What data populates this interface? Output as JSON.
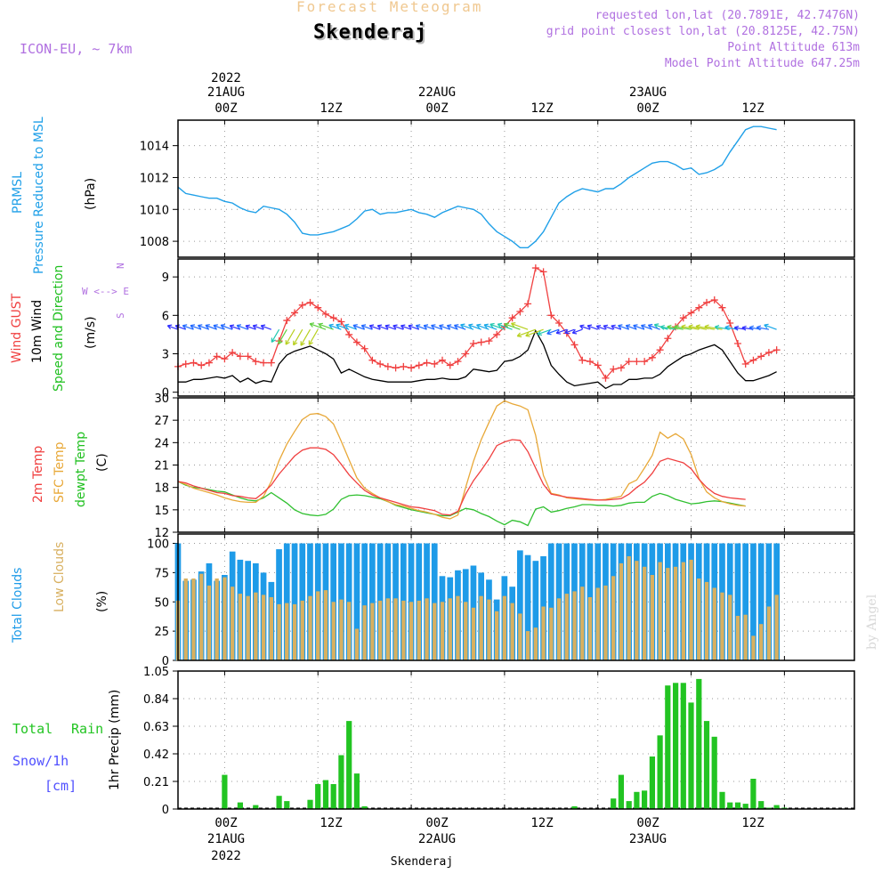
{
  "header": {
    "forecast_title": "Forecast Meteogram",
    "location": "Skenderaj",
    "model": "ICON-EU, ~ 7km",
    "requested": "requested lon,lat (20.7891E, 42.7476N)",
    "grid_point": "grid point closest lon,lat (20.8125E, 42.75N)",
    "point_altitude": "Point Altitude 613m",
    "model_altitude": "Model Point Altitude 647.25m",
    "watermark": "by Angel",
    "footer": "Skenderaj"
  },
  "time_axis": {
    "top_year": "2022",
    "top_days": [
      "21AUG",
      "22AUG",
      "23AUG"
    ],
    "hours": [
      "00Z",
      "12Z",
      "00Z",
      "12Z",
      "00Z",
      "12Z"
    ],
    "bottom_days": [
      "21AUG",
      "22AUG",
      "23AUG"
    ],
    "bottom_year": "2022"
  },
  "panel_labels": {
    "pressure": [
      "PRMSL",
      "Pressure Reduced to MSL",
      "(hPa)"
    ],
    "wind": [
      "Wind GUST",
      "10m Wind",
      "Speed and Direction",
      "(m/s)"
    ],
    "compass": [
      "N",
      "W <--> E",
      "S"
    ],
    "temp": [
      "2m Temp",
      "SFC Temp",
      "dewpt Temp",
      "(C)"
    ],
    "clouds": [
      "Total Clouds",
      "Low Clouds",
      "(%)"
    ],
    "precip": [
      "Total",
      "Rain",
      "Snow/1h",
      "[cm]",
      "1hr Precip (mm)"
    ]
  },
  "colors": {
    "pressure": "#20a0e8",
    "gust": "#f04040",
    "wind": "#000000",
    "temp2m": "#f04040",
    "sfc": "#e8a838",
    "dewpt": "#30c030",
    "total_clouds": "#1e9be8",
    "low_clouds": "#d8b060",
    "rain": "#22c422",
    "snow": "#5050ff"
  },
  "chart_data": [
    {
      "type": "line",
      "x_hours": [
        -6,
        -5,
        -4,
        -3,
        -2,
        -1,
        0,
        1,
        2,
        3,
        4,
        5,
        6,
        7,
        8,
        9,
        10,
        11,
        12,
        13,
        14,
        15,
        16,
        17,
        18,
        19,
        20,
        21,
        22,
        23,
        24,
        25,
        26,
        27,
        28,
        29,
        30,
        31,
        32,
        33,
        34,
        35,
        36,
        37,
        38,
        39,
        40,
        41,
        42,
        43,
        44,
        45,
        46,
        47,
        48,
        49,
        50,
        51,
        52,
        53,
        54,
        55,
        56,
        57,
        58,
        59,
        60,
        61,
        62,
        63,
        64,
        65,
        66,
        67,
        68,
        69,
        70,
        71,
        72,
        73,
        74,
        75,
        76,
        77,
        78,
        79,
        80,
        81
      ],
      "series": [
        {
          "name": "PRMSL",
          "values": [
            1011.4,
            1011.0,
            1010.9,
            1010.8,
            1010.7,
            1010.7,
            1010.5,
            1010.4,
            1010.1,
            1009.9,
            1009.8,
            1010.2,
            1010.1,
            1010.0,
            1009.7,
            1009.2,
            1008.5,
            1008.4,
            1008.4,
            1008.5,
            1008.6,
            1008.8,
            1009.0,
            1009.4,
            1009.9,
            1010.0,
            1009.7,
            1009.8,
            1009.8,
            1009.9,
            1010.0,
            1009.8,
            1009.7,
            1009.5,
            1009.8,
            1010.0,
            1010.2,
            1010.1,
            1010.0,
            1009.7,
            1009.1,
            1008.6,
            1008.3,
            1008.0,
            1007.6,
            1007.6,
            1008.0,
            1008.6,
            1009.5,
            1010.4,
            1010.8,
            1011.1,
            1011.3,
            1011.2,
            1011.1,
            1011.3,
            1011.3,
            1011.6,
            1012.0,
            1012.3,
            1012.6,
            1012.9,
            1013.0,
            1013.0,
            1012.8,
            1012.5,
            1012.6,
            1012.2,
            1012.3,
            1012.5,
            1012.8,
            1013.6,
            1014.3,
            1015.0,
            1015.2,
            1015.2,
            1015.1,
            1015.0
          ]
        }
      ],
      "ylim": [
        1007,
        1015.6
      ],
      "yticks": [
        1008,
        1010,
        1012,
        1014
      ],
      "grid": true
    },
    {
      "type": "line",
      "x_hours": [
        -6,
        -5,
        -4,
        -3,
        -2,
        -1,
        0,
        1,
        2,
        3,
        4,
        5,
        6,
        7,
        8,
        9,
        10,
        11,
        12,
        13,
        14,
        15,
        16,
        17,
        18,
        19,
        20,
        21,
        22,
        23,
        24,
        25,
        26,
        27,
        28,
        29,
        30,
        31,
        32,
        33,
        34,
        35,
        36,
        37,
        38,
        39,
        40,
        41,
        42,
        43,
        44,
        45,
        46,
        47,
        48,
        49,
        50,
        51,
        52,
        53,
        54,
        55,
        56,
        57,
        58,
        59,
        60,
        61,
        62,
        63,
        64,
        65,
        66,
        67,
        68,
        69,
        70,
        71,
        72,
        73,
        74,
        75,
        76,
        77,
        78,
        79,
        80,
        81
      ],
      "series": [
        {
          "name": "Wind GUST",
          "values": [
            2.0,
            2.2,
            2.3,
            2.1,
            2.3,
            2.8,
            2.6,
            3.1,
            2.8,
            2.8,
            2.4,
            2.3,
            2.3,
            4.0,
            5.6,
            6.2,
            6.8,
            7.0,
            6.6,
            6.1,
            5.8,
            5.5,
            4.5,
            3.9,
            3.4,
            2.5,
            2.2,
            2.0,
            1.9,
            2.0,
            1.9,
            2.1,
            2.3,
            2.2,
            2.5,
            2.1,
            2.4,
            3.0,
            3.8,
            3.9,
            4.0,
            4.5,
            5.1,
            5.8,
            6.3,
            6.9,
            9.7,
            9.4,
            6.0,
            5.4,
            4.6,
            3.7,
            2.5,
            2.4,
            2.1,
            1.1,
            1.8,
            1.9,
            2.4,
            2.4,
            2.4,
            2.7,
            3.3,
            4.2,
            5.1,
            5.8,
            6.2,
            6.6,
            7.0,
            7.2,
            6.6,
            5.4,
            3.8,
            2.2,
            2.5,
            2.8,
            3.1,
            3.3
          ]
        },
        {
          "name": "10m Wind",
          "values": [
            0.8,
            0.8,
            1.0,
            1.0,
            1.1,
            1.2,
            1.1,
            1.3,
            0.8,
            1.1,
            0.7,
            0.9,
            0.8,
            2.2,
            2.9,
            3.2,
            3.4,
            3.6,
            3.3,
            3.0,
            2.6,
            1.5,
            1.8,
            1.5,
            1.2,
            1.0,
            0.9,
            0.8,
            0.8,
            0.8,
            0.8,
            0.9,
            1.0,
            1.0,
            1.1,
            1.0,
            1.0,
            1.2,
            1.8,
            1.7,
            1.6,
            1.7,
            2.4,
            2.5,
            2.8,
            3.3,
            4.8,
            3.7,
            2.1,
            1.4,
            0.8,
            0.5,
            0.6,
            0.7,
            0.8,
            0.3,
            0.6,
            0.6,
            1.0,
            1.0,
            1.1,
            1.1,
            1.4,
            2.0,
            2.4,
            2.8,
            3.0,
            3.3,
            3.5,
            3.7,
            3.3,
            2.4,
            1.5,
            0.9,
            0.9,
            1.1,
            1.3,
            1.6
          ]
        }
      ],
      "ylim": [
        -0.3,
        10.4
      ],
      "yticks": [
        0,
        3,
        6,
        9
      ],
      "grid": true
    },
    {
      "type": "line",
      "x_hours": [
        -6,
        -5,
        -4,
        -3,
        -2,
        -1,
        0,
        1,
        2,
        3,
        4,
        5,
        6,
        7,
        8,
        9,
        10,
        11,
        12,
        13,
        14,
        15,
        16,
        17,
        18,
        19,
        20,
        21,
        22,
        23,
        24,
        25,
        26,
        27,
        28,
        29,
        30,
        31,
        32,
        33,
        34,
        35,
        36,
        37,
        38,
        39,
        40,
        41,
        42,
        43,
        44,
        45,
        46,
        47,
        48,
        49,
        50,
        51,
        52,
        53,
        54,
        55,
        56,
        57,
        58,
        59,
        60,
        61,
        62,
        63,
        64,
        65,
        66,
        67,
        68,
        69,
        70,
        71,
        72,
        73,
        74,
        75,
        76,
        77,
        78,
        79,
        80,
        81
      ],
      "series": [
        {
          "name": "2m Temp",
          "values": [
            18.8,
            18.6,
            18.2,
            17.9,
            17.6,
            17.3,
            17.2,
            16.9,
            16.8,
            16.6,
            16.5,
            17.3,
            18.3,
            19.8,
            21.0,
            22.2,
            23.0,
            23.3,
            23.3,
            23.1,
            22.4,
            21.1,
            19.7,
            18.6,
            17.6,
            17.0,
            16.6,
            16.3,
            16.0,
            15.7,
            15.4,
            15.3,
            15.1,
            14.9,
            14.4,
            14.3,
            14.8,
            17.1,
            18.9,
            20.3,
            21.8,
            23.6,
            24.1,
            24.4,
            24.3,
            22.8,
            20.6,
            18.4,
            17.1,
            16.9,
            16.7,
            16.6,
            16.5,
            16.4,
            16.3,
            16.3,
            16.4,
            16.5,
            17.1,
            18.0,
            18.7,
            19.9,
            21.5,
            21.9,
            21.6,
            21.3,
            20.5,
            19.1,
            18.0,
            17.2,
            16.8,
            16.6,
            16.5,
            16.4
          ]
        },
        {
          "name": "SFC Temp",
          "values": [
            18.8,
            18.4,
            17.9,
            17.6,
            17.3,
            17.0,
            16.6,
            16.3,
            16.1,
            16.0,
            16.0,
            16.8,
            18.8,
            21.6,
            23.8,
            25.5,
            27.1,
            27.8,
            27.9,
            27.5,
            26.5,
            24.2,
            21.7,
            19.3,
            17.9,
            17.2,
            16.6,
            16.1,
            15.7,
            15.5,
            15.2,
            14.9,
            14.7,
            14.4,
            14.0,
            13.8,
            14.3,
            18.0,
            21.5,
            24.4,
            26.7,
            28.9,
            29.6,
            29.2,
            28.9,
            28.4,
            25.0,
            19.6,
            17.2,
            17.0,
            16.6,
            16.5,
            16.4,
            16.3,
            16.3,
            16.4,
            16.6,
            16.8,
            18.5,
            19.0,
            20.6,
            22.3,
            25.4,
            24.6,
            25.2,
            24.5,
            22.4,
            19.2,
            17.4,
            16.6,
            16.1,
            15.8,
            15.6,
            15.5
          ]
        },
        {
          "name": "dewpt Temp",
          "values": [
            18.8,
            18.3,
            18.0,
            17.9,
            17.7,
            17.5,
            17.4,
            17.0,
            16.6,
            16.3,
            16.2,
            16.6,
            17.3,
            16.6,
            15.9,
            15.0,
            14.5,
            14.3,
            14.2,
            14.4,
            15.1,
            16.4,
            16.9,
            17.0,
            16.9,
            16.7,
            16.5,
            16.1,
            15.6,
            15.3,
            15.0,
            14.8,
            14.6,
            14.4,
            14.2,
            14.2,
            14.7,
            15.2,
            15.0,
            14.5,
            14.1,
            13.5,
            13.0,
            13.6,
            13.4,
            12.9,
            15.1,
            15.4,
            14.7,
            14.9,
            15.2,
            15.4,
            15.7,
            15.7,
            15.6,
            15.6,
            15.5,
            15.6,
            15.9,
            16.0,
            16.0,
            16.8,
            17.2,
            16.9,
            16.4,
            16.1,
            15.8,
            15.9,
            16.1,
            16.2,
            16.1,
            15.9,
            15.7,
            15.5
          ]
        }
      ],
      "ylim": [
        12,
        30
      ],
      "yticks": [
        12,
        15,
        18,
        21,
        24,
        27,
        30
      ],
      "grid": true
    },
    {
      "type": "bar",
      "x_hours": [
        -6,
        -5,
        -4,
        -3,
        -2,
        -1,
        0,
        1,
        2,
        3,
        4,
        5,
        6,
        7,
        8,
        9,
        10,
        11,
        12,
        13,
        14,
        15,
        16,
        17,
        18,
        19,
        20,
        21,
        22,
        23,
        24,
        25,
        26,
        27,
        28,
        29,
        30,
        31,
        32,
        33,
        34,
        35,
        36,
        37,
        38,
        39,
        40,
        41,
        42,
        43,
        44,
        45,
        46,
        47,
        48,
        49,
        50,
        51,
        52,
        53,
        54,
        55,
        56,
        57,
        58,
        59,
        60,
        61,
        62,
        63,
        64,
        65,
        66,
        67,
        68,
        69,
        70,
        71,
        72,
        73,
        74,
        75,
        76,
        77,
        78,
        79,
        80,
        81
      ],
      "series": [
        {
          "name": "Total Clouds",
          "values": [
            100,
            68,
            69,
            76,
            83,
            68,
            73,
            93,
            86,
            85,
            83,
            75,
            67,
            95,
            100,
            100,
            100,
            100,
            100,
            100,
            100,
            100,
            100,
            100,
            100,
            100,
            100,
            100,
            100,
            100,
            100,
            100,
            100,
            100,
            72,
            71,
            77,
            78,
            81,
            75,
            69,
            52,
            72,
            63,
            94,
            90,
            85,
            89,
            100,
            100,
            100,
            100,
            100,
            100,
            100,
            100,
            100,
            100,
            100,
            100,
            100,
            100,
            100,
            100,
            100,
            100,
            100,
            100,
            100,
            100,
            100,
            100,
            100,
            100,
            100,
            100,
            100,
            100
          ]
        },
        {
          "name": "Low Clouds",
          "values": [
            51,
            70,
            70,
            74,
            64,
            70,
            71,
            63,
            57,
            55,
            58,
            56,
            54,
            48,
            49,
            48,
            51,
            55,
            59,
            60,
            50,
            52,
            50,
            27,
            47,
            49,
            51,
            53,
            53,
            51,
            50,
            51,
            53,
            49,
            50,
            53,
            55,
            50,
            45,
            55,
            52,
            42,
            55,
            49,
            40,
            25,
            28,
            46,
            45,
            53,
            57,
            59,
            63,
            54,
            62,
            64,
            72,
            83,
            89,
            85,
            80,
            73,
            84,
            79,
            80,
            84,
            86,
            70,
            67,
            62,
            58,
            56,
            38,
            39,
            21,
            31,
            46,
            56
          ]
        }
      ],
      "ylim": [
        0,
        108
      ],
      "yticks": [
        0,
        25,
        50,
        75,
        100
      ],
      "grid": true
    },
    {
      "type": "bar",
      "x_hours": [
        0,
        2,
        4,
        7,
        8,
        11,
        12,
        13,
        14,
        15,
        16,
        17,
        18,
        45,
        50,
        51,
        52,
        53,
        54,
        55,
        56,
        57,
        58,
        59,
        60,
        61,
        62,
        63,
        64,
        65,
        66,
        67,
        68,
        69,
        70,
        71,
        72,
        73
      ],
      "series": [
        {
          "name": "Total Rain",
          "values": [
            0.26,
            0.05,
            0.03,
            0.1,
            0.06,
            0.07,
            0.19,
            0.22,
            0.19,
            0.41,
            0.67,
            0.27,
            0.02,
            0.02,
            0.08,
            0.26,
            0.06,
            0.13,
            0.14,
            0.4,
            0.56,
            0.94,
            0.96,
            0.96,
            0.81,
            0.99,
            0.67,
            0.55,
            0.13,
            0.05,
            0.05,
            0.04,
            0.23,
            0.06,
            0.01,
            0.03,
            0.01,
            0.0
          ]
        }
      ],
      "ylim": [
        0,
        1.05
      ],
      "yticks": [
        0,
        0.21,
        0.42,
        0.63,
        0.84,
        1.05
      ],
      "grid": true
    }
  ]
}
